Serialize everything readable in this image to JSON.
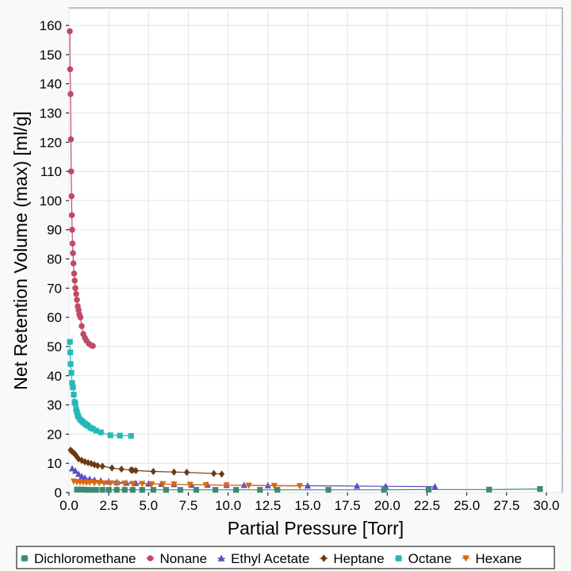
{
  "chart_data": {
    "type": "scatter",
    "xlabel": "Partial Pressure [Torr]",
    "ylabel": "Net Retention Volume (max) [ml/g]",
    "xlim": [
      0,
      31
    ],
    "ylim": [
      0,
      166
    ],
    "xticks": [
      "0.0",
      "2.5",
      "5.0",
      "7.5",
      "10.0",
      "12.5",
      "15.0",
      "17.5",
      "20.0",
      "22.5",
      "25.0",
      "27.5",
      "30.0"
    ],
    "yticks": [
      "0",
      "10",
      "20",
      "30",
      "40",
      "50",
      "60",
      "70",
      "80",
      "90",
      "100",
      "110",
      "120",
      "130",
      "140",
      "150",
      "160"
    ],
    "grid": true,
    "legend_position": "bottom",
    "series": [
      {
        "name": "Dichloromethane",
        "color": "#3d8a6e",
        "marker": "square",
        "x": [
          0.5,
          0.7,
          0.9,
          1.1,
          1.4,
          1.7,
          2.1,
          2.5,
          3.0,
          3.5,
          4.0,
          4.6,
          5.3,
          6.1,
          7.0,
          8.0,
          9.2,
          10.5,
          12.0,
          13.1,
          16.3,
          19.8,
          22.6,
          26.4,
          29.6
        ],
        "y": [
          1.0,
          1.0,
          1.0,
          0.9,
          0.9,
          0.9,
          0.9,
          0.9,
          0.9,
          0.9,
          0.9,
          0.9,
          0.9,
          0.9,
          0.9,
          0.9,
          0.9,
          0.9,
          0.9,
          0.9,
          0.9,
          0.9,
          1.0,
          1.0,
          1.2
        ]
      },
      {
        "name": "Nonane",
        "color": "#bf4b67",
        "marker": "circle",
        "x": [
          0.05,
          0.07,
          0.1,
          0.12,
          0.14,
          0.16,
          0.18,
          0.2,
          0.22,
          0.25,
          0.28,
          0.32,
          0.36,
          0.4,
          0.45,
          0.5,
          0.55,
          0.6,
          0.65,
          0.72,
          0.8,
          0.9,
          1.0,
          1.1,
          1.25,
          1.4,
          1.5
        ],
        "y": [
          158,
          145,
          136.5,
          121,
          110,
          101.5,
          95,
          90,
          85.3,
          82,
          78.5,
          75,
          72.6,
          70,
          68,
          66,
          63.8,
          62.5,
          61,
          60,
          57,
          54.3,
          53,
          52,
          51,
          50.4,
          50.2
        ]
      },
      {
        "name": "Ethyl Acetate",
        "color": "#5a4fbf",
        "marker": "triangle",
        "x": [
          0.2,
          0.4,
          0.6,
          0.8,
          1.0,
          1.3,
          1.6,
          2.0,
          2.5,
          3.0,
          3.6,
          4.2,
          5.0,
          5.8,
          6.6,
          7.7,
          8.7,
          9.9,
          11.0,
          12.5,
          15.0,
          18.1,
          19.9,
          23.0
        ],
        "y": [
          8.2,
          7.4,
          6.3,
          5.5,
          5.0,
          4.6,
          4.3,
          4.0,
          3.7,
          3.5,
          3.3,
          3.2,
          3.0,
          2.9,
          2.8,
          2.6,
          2.6,
          2.5,
          2.5,
          2.4,
          2.3,
          2.2,
          2.1,
          2.0
        ]
      },
      {
        "name": "Heptane",
        "color": "#6b3a12",
        "marker": "diamond",
        "x": [
          0.1,
          0.2,
          0.3,
          0.4,
          0.5,
          0.6,
          0.8,
          1.0,
          1.2,
          1.4,
          1.6,
          1.8,
          2.1,
          2.7,
          3.3,
          3.9,
          4.0,
          4.2,
          5.3,
          6.6,
          7.4,
          9.1,
          9.6
        ],
        "y": [
          14.5,
          14.0,
          13.5,
          13.0,
          12.2,
          11.5,
          11.0,
          10.5,
          10.2,
          9.9,
          9.5,
          9.2,
          9.0,
          8.4,
          8.0,
          7.7,
          7.6,
          7.5,
          7.2,
          7.0,
          6.9,
          6.5,
          6.3
        ]
      },
      {
        "name": "Octane",
        "color": "#26b8b8",
        "marker": "square",
        "x": [
          0.06,
          0.08,
          0.1,
          0.15,
          0.2,
          0.25,
          0.3,
          0.35,
          0.4,
          0.45,
          0.5,
          0.55,
          0.6,
          0.7,
          0.8,
          0.9,
          1.0,
          1.1,
          1.2,
          1.35,
          1.5,
          1.7,
          2.0,
          2.6,
          3.2,
          3.9
        ],
        "y": [
          51.6,
          48,
          44,
          41,
          37.5,
          36,
          33.5,
          31,
          30.5,
          28.5,
          27.5,
          26.5,
          25.8,
          25,
          24.5,
          24,
          23.6,
          23.2,
          22.8,
          22.2,
          21.8,
          21.2,
          20.6,
          19.6,
          19.5,
          19.4
        ]
      },
      {
        "name": "Hexane",
        "color": "#d96a0c",
        "marker": "triangle-down",
        "x": [
          0.3,
          0.5,
          0.7,
          0.9,
          1.1,
          1.3,
          1.6,
          1.9,
          2.2,
          2.6,
          3.0,
          3.5,
          4.0,
          4.6,
          5.2,
          5.9,
          6.6,
          7.6,
          8.6,
          9.9,
          11.3,
          12.9,
          14.5
        ],
        "y": [
          3.8,
          3.6,
          3.5,
          3.5,
          3.4,
          3.4,
          3.3,
          3.3,
          3.2,
          3.2,
          3.1,
          3.1,
          3.0,
          3.0,
          2.9,
          2.9,
          2.8,
          2.7,
          2.6,
          2.5,
          2.4,
          2.3,
          2.2
        ]
      }
    ]
  }
}
